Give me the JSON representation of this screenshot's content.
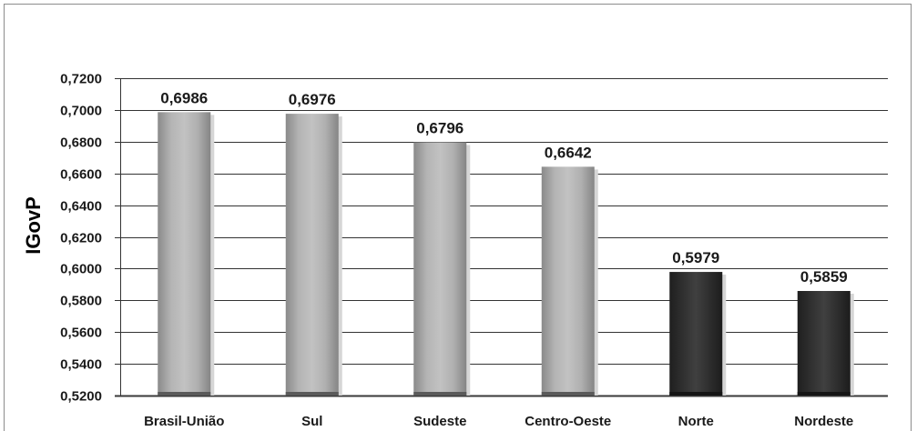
{
  "chart_data": {
    "type": "bar",
    "title": "",
    "xlabel": "",
    "ylabel": "IGovP",
    "ylim": [
      0.52,
      0.72
    ],
    "yticks": [
      0.52,
      0.54,
      0.56,
      0.58,
      0.6,
      0.62,
      0.64,
      0.66,
      0.68,
      0.7,
      0.72
    ],
    "ytick_labels": [
      "0,5200",
      "0,5400",
      "0,5600",
      "0,5800",
      "0,6000",
      "0,6200",
      "0,6400",
      "0,6600",
      "0,6800",
      "0,7000",
      "0,7200"
    ],
    "categories": [
      "Brasil-União",
      "Sul",
      "Sudeste",
      "Centro-Oeste",
      "Norte",
      "Nordeste"
    ],
    "values": [
      0.6986,
      0.6976,
      0.6796,
      0.6642,
      0.5979,
      0.5859
    ],
    "data_labels": [
      "0,6986",
      "0,6976",
      "0,6796",
      "0,6642",
      "0,5979",
      "0,5859"
    ],
    "bar_colors": [
      "#a3a3a3",
      "#a3a3a3",
      "#a3a3a3",
      "#a3a3a3",
      "#3a3a3a",
      "#3a3a3a"
    ],
    "grid": true,
    "legend": "none"
  }
}
